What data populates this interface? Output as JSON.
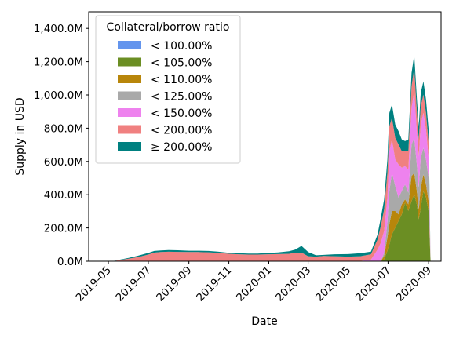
{
  "chart_data": {
    "type": "area",
    "stacked": true,
    "xlabel": "Date",
    "ylabel": "Supply in USD",
    "ylim": [
      0,
      1500
    ],
    "y_unit": "M",
    "yticks": [
      0,
      200,
      400,
      600,
      800,
      1000,
      1200,
      1400
    ],
    "ytick_labels": [
      "0.0M",
      "200.0M",
      "400.0M",
      "600.0M",
      "800.0M",
      "1,000.0M",
      "1,200.0M",
      "1,400.0M"
    ],
    "xlim": [
      "2019-04-01",
      "2020-09-20"
    ],
    "xticks": [
      "2019-05-01",
      "2019-07-01",
      "2019-09-01",
      "2019-11-01",
      "2020-01-01",
      "2020-03-01",
      "2020-05-01",
      "2020-07-01",
      "2020-09-01"
    ],
    "xtick_labels": [
      "2019-05",
      "2019-07",
      "2019-09",
      "2019-11",
      "2020-01",
      "2020-03",
      "2020-05",
      "2020-07",
      "2020-09"
    ],
    "legend": {
      "title": "Collateral/borrow ratio",
      "position": "upper-left"
    },
    "grid": false,
    "x": [
      "2019-04-20",
      "2019-05-07",
      "2019-05-20",
      "2019-06-01",
      "2019-06-15",
      "2019-07-01",
      "2019-07-10",
      "2019-07-20",
      "2019-08-01",
      "2019-08-15",
      "2019-09-01",
      "2019-09-15",
      "2019-10-01",
      "2019-10-15",
      "2019-11-01",
      "2019-11-15",
      "2019-12-01",
      "2019-12-15",
      "2020-01-01",
      "2020-01-15",
      "2020-02-01",
      "2020-02-10",
      "2020-02-20",
      "2020-03-01",
      "2020-03-13",
      "2020-03-25",
      "2020-04-10",
      "2020-05-01",
      "2020-05-20",
      "2020-06-05",
      "2020-06-15",
      "2020-06-20",
      "2020-06-25",
      "2020-06-30",
      "2020-07-03",
      "2020-07-07",
      "2020-07-12",
      "2020-07-17",
      "2020-07-22",
      "2020-07-27",
      "2020-08-01",
      "2020-08-06",
      "2020-08-10",
      "2020-08-14",
      "2020-08-17",
      "2020-08-20",
      "2020-08-24",
      "2020-08-28",
      "2020-09-01",
      "2020-09-04"
    ],
    "series": [
      {
        "name": "< 100.00%",
        "color": "#6495ed",
        "values": [
          0,
          0,
          0,
          0,
          0,
          0,
          0,
          0,
          0,
          0,
          0,
          0,
          0,
          0,
          0,
          0,
          0,
          0,
          0,
          0,
          0,
          0,
          0,
          0,
          0,
          0,
          0,
          0,
          0,
          0,
          0,
          1,
          1,
          2,
          2,
          2,
          2,
          2,
          2,
          2,
          2,
          2,
          2,
          2,
          2,
          2,
          2,
          2,
          2,
          0
        ]
      },
      {
        "name": "< 105.00%",
        "color": "#6b8e23",
        "values": [
          0,
          0,
          0,
          0,
          0,
          0,
          0,
          0,
          0,
          0,
          0,
          0,
          0,
          0,
          0,
          0,
          0,
          0,
          0,
          0,
          0,
          0,
          0,
          0,
          0,
          0,
          0,
          0,
          0,
          0,
          0,
          0,
          10,
          60,
          100,
          160,
          200,
          240,
          280,
          350,
          300,
          360,
          400,
          340,
          250,
          320,
          420,
          380,
          300,
          0
        ]
      },
      {
        "name": "< 110.00%",
        "color": "#b8860b",
        "values": [
          0,
          0,
          0,
          0,
          0,
          0,
          0,
          0,
          0,
          0,
          0,
          0,
          0,
          0,
          0,
          0,
          0,
          0,
          0,
          0,
          0,
          0,
          0,
          0,
          0,
          0,
          0,
          0,
          0,
          0,
          0,
          0,
          20,
          80,
          120,
          140,
          100,
          40,
          60,
          20,
          40,
          150,
          130,
          80,
          60,
          120,
          100,
          80,
          60,
          0
        ]
      },
      {
        "name": "< 125.00%",
        "color": "#a9a9a9",
        "values": [
          0,
          0,
          0,
          0,
          0,
          0,
          0,
          0,
          0,
          0,
          0,
          0,
          0,
          0,
          0,
          0,
          0,
          0,
          0,
          0,
          0,
          0,
          0,
          0,
          0,
          0,
          0,
          0,
          0,
          0,
          0,
          0,
          20,
          90,
          200,
          230,
          150,
          100,
          80,
          90,
          70,
          190,
          210,
          160,
          130,
          180,
          160,
          150,
          140,
          0
        ]
      },
      {
        "name": "< 150.00%",
        "color": "#ee82ee",
        "values": [
          0,
          0,
          0,
          0,
          0,
          0,
          0,
          0,
          0,
          0,
          0,
          0,
          0,
          0,
          0,
          0,
          0,
          0,
          0,
          0,
          0,
          0,
          0,
          0,
          0,
          0,
          0,
          0,
          2,
          10,
          70,
          110,
          130,
          150,
          240,
          200,
          160,
          200,
          140,
          110,
          140,
          220,
          280,
          200,
          190,
          200,
          210,
          180,
          120,
          0
        ]
      },
      {
        "name": "< 200.00%",
        "color": "#f08080",
        "values": [
          0,
          0,
          8,
          15,
          25,
          40,
          52,
          55,
          57,
          56,
          55,
          55,
          54,
          50,
          45,
          42,
          40,
          40,
          42,
          43,
          45,
          50,
          52,
          30,
          28,
          32,
          30,
          28,
          28,
          32,
          60,
          100,
          130,
          150,
          150,
          130,
          130,
          120,
          100,
          90,
          110,
          130,
          140,
          120,
          100,
          110,
          110,
          100,
          90,
          0
        ]
      },
      {
        "name": "≥ 200.00%",
        "color": "#008080",
        "values": [
          0,
          0,
          3,
          5,
          8,
          10,
          10,
          10,
          10,
          10,
          8,
          8,
          8,
          8,
          6,
          6,
          6,
          6,
          8,
          10,
          15,
          20,
          40,
          25,
          8,
          6,
          12,
          15,
          18,
          16,
          30,
          50,
          60,
          80,
          80,
          80,
          80,
          80,
          70,
          60,
          70,
          80,
          80,
          80,
          80,
          80,
          80,
          80,
          80,
          0
        ]
      }
    ]
  }
}
